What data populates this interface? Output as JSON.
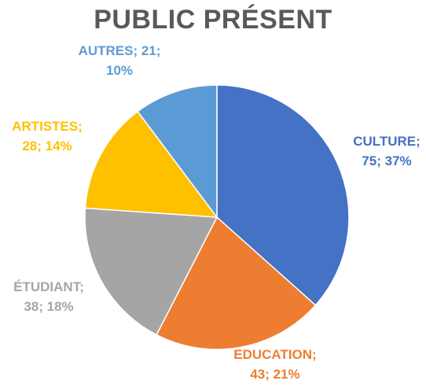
{
  "chart_data": {
    "type": "pie",
    "title": "PUBLIC PRÉSENT",
    "slices": [
      {
        "name": "CULTURE",
        "value": 75,
        "percent": "37%",
        "color": "#4472C4",
        "label_line1": "CULTURE;",
        "label_line2": "75; 37%"
      },
      {
        "name": "EDUCATION",
        "value": 43,
        "percent": "21%",
        "color": "#ED7D31",
        "label_line1": "EDUCATION;",
        "label_line2": "43; 21%"
      },
      {
        "name": "ÉTUDIANT",
        "value": 38,
        "percent": "18%",
        "color": "#A5A5A5",
        "label_line1": "ÉTUDIANT;",
        "label_line2": "38; 18%"
      },
      {
        "name": "ARTISTES",
        "value": 28,
        "percent": "14%",
        "color": "#FFC000",
        "label_line1": "ARTISTES;",
        "label_line2": "28; 14%"
      },
      {
        "name": "AUTRES",
        "value": 21,
        "percent": "10%",
        "color": "#5B9BD5",
        "label_line1": "AUTRES; 21;",
        "label_line2": "10%"
      }
    ],
    "start_angle": "12 o'clock",
    "direction": "clockwise",
    "legend": "none"
  }
}
